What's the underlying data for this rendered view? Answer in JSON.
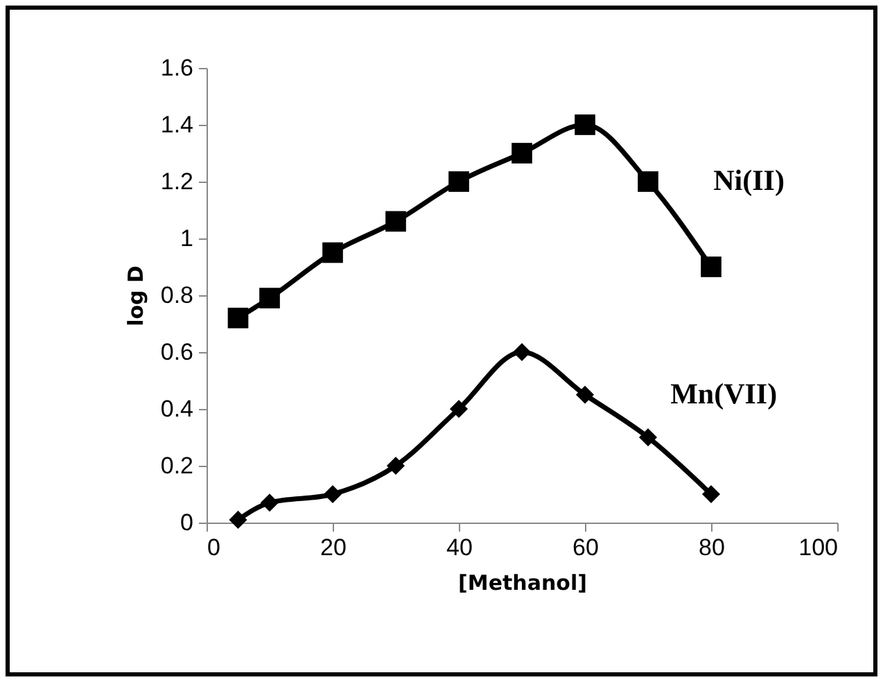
{
  "chart_data": {
    "type": "line",
    "xlabel": "[Methanol]",
    "ylabel": "log D",
    "xlim": [
      0,
      100
    ],
    "xticks": [
      0,
      20,
      40,
      60,
      80,
      100
    ],
    "ylim": [
      0,
      1.6
    ],
    "yticks": [
      0,
      0.2,
      0.4,
      0.6,
      0.8,
      1,
      1.2,
      1.4,
      1.6
    ],
    "grid": false,
    "x": [
      5,
      10,
      20,
      30,
      40,
      50,
      60,
      70,
      80
    ],
    "series": [
      {
        "name": "Ni(II)",
        "color": "#000000",
        "marker": "square",
        "values": [
          0.72,
          0.79,
          0.95,
          1.06,
          1.2,
          1.3,
          1.4,
          1.2,
          0.9
        ]
      },
      {
        "name": "Mn(VII)",
        "color": "#000000",
        "marker": "diamond",
        "values": [
          0.01,
          0.07,
          0.1,
          0.2,
          0.4,
          0.6,
          0.45,
          0.3,
          0.1
        ]
      }
    ]
  }
}
